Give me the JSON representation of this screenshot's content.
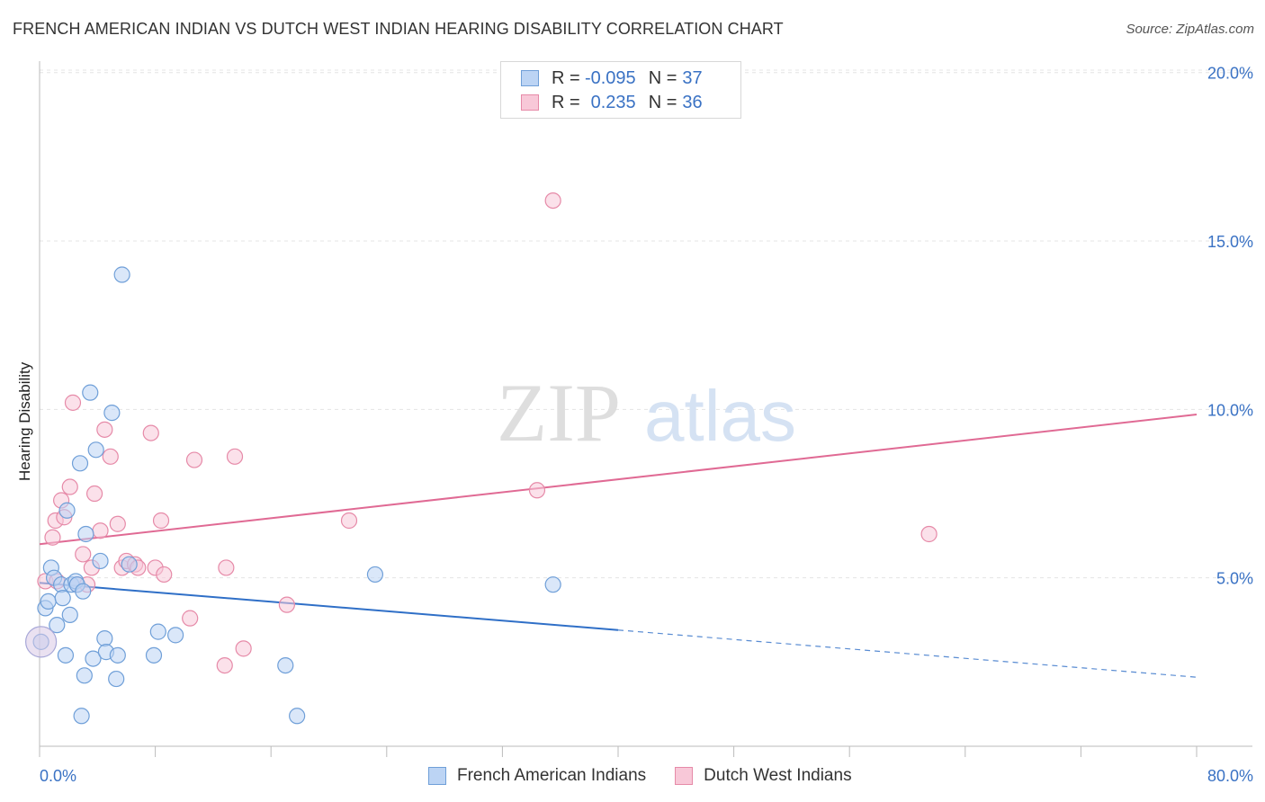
{
  "title": "FRENCH AMERICAN INDIAN VS DUTCH WEST INDIAN HEARING DISABILITY CORRELATION CHART",
  "source": "Source: ZipAtlas.com",
  "watermark": {
    "zip": "ZIP",
    "atlas": "atlas"
  },
  "legend": {
    "rows": [
      {
        "r_label": "R =",
        "r_value": "-0.095",
        "n_label": "N =",
        "n_value": "37"
      },
      {
        "r_label": "R =",
        "r_value": "0.235",
        "n_label": "N =",
        "n_value": "36"
      }
    ]
  },
  "bottom_legend": [
    "French American Indians",
    "Dutch West Indians"
  ],
  "colors": {
    "blue_fill": "#bcd4f4",
    "blue_stroke": "#6f9fd8",
    "blue_line": "#2f6fc7",
    "pink_fill": "#f8c8d8",
    "pink_stroke": "#e68aa8",
    "pink_line": "#e06a94",
    "tick_text": "#3a72c4",
    "grid": "#e4e4e4"
  },
  "chart_data": {
    "type": "scatter",
    "title": "FRENCH AMERICAN INDIAN VS DUTCH WEST INDIAN HEARING DISABILITY CORRELATION CHART",
    "xlabel": "",
    "ylabel": "Hearing Disability",
    "xlim": [
      0,
      80
    ],
    "ylim": [
      0,
      20.5
    ],
    "x_tick_labels": [
      "0.0%",
      "80.0%"
    ],
    "y_ticks": [
      5,
      10,
      15,
      20
    ],
    "y_tick_labels": [
      "5.0%",
      "10.0%",
      "15.0%",
      "20.0%"
    ],
    "grid": true,
    "series": [
      {
        "name": "French American Indians",
        "r": -0.095,
        "n": 37,
        "trend": {
          "x0": 0,
          "y0": 4.85,
          "x1": 40,
          "y1": 3.45,
          "dashed_to_x": 80,
          "dashed_to_y": 2.05
        },
        "points": [
          [
            0.1,
            3.1
          ],
          [
            0.4,
            4.1
          ],
          [
            0.6,
            4.3
          ],
          [
            0.8,
            5.3
          ],
          [
            1.0,
            5.0
          ],
          [
            1.2,
            3.6
          ],
          [
            1.5,
            4.8
          ],
          [
            1.6,
            4.4
          ],
          [
            1.8,
            2.7
          ],
          [
            1.9,
            7.0
          ],
          [
            2.1,
            3.9
          ],
          [
            2.2,
            4.8
          ],
          [
            2.5,
            4.9
          ],
          [
            2.6,
            4.8
          ],
          [
            2.8,
            8.4
          ],
          [
            2.9,
            0.9
          ],
          [
            3.0,
            4.6
          ],
          [
            3.1,
            2.1
          ],
          [
            3.2,
            6.3
          ],
          [
            3.5,
            10.5
          ],
          [
            3.7,
            2.6
          ],
          [
            3.9,
            8.8
          ],
          [
            4.2,
            5.5
          ],
          [
            4.5,
            3.2
          ],
          [
            4.6,
            2.8
          ],
          [
            5.0,
            9.9
          ],
          [
            5.3,
            2.0
          ],
          [
            5.4,
            2.7
          ],
          [
            5.7,
            14.0
          ],
          [
            6.2,
            5.4
          ],
          [
            7.9,
            2.7
          ],
          [
            8.2,
            3.4
          ],
          [
            9.4,
            3.3
          ],
          [
            17.0,
            2.4
          ],
          [
            17.8,
            0.9
          ],
          [
            23.2,
            5.1
          ],
          [
            35.5,
            4.8
          ]
        ]
      },
      {
        "name": "Dutch West Indians",
        "r": 0.235,
        "n": 36,
        "trend": {
          "x0": 0,
          "y0": 6.0,
          "x1": 80,
          "y1": 9.85
        },
        "points": [
          [
            0.4,
            4.9
          ],
          [
            0.9,
            6.2
          ],
          [
            1.1,
            6.7
          ],
          [
            1.2,
            4.9
          ],
          [
            1.5,
            7.3
          ],
          [
            1.7,
            6.8
          ],
          [
            2.1,
            7.7
          ],
          [
            2.3,
            10.2
          ],
          [
            2.6,
            4.8
          ],
          [
            3.0,
            5.7
          ],
          [
            3.3,
            4.8
          ],
          [
            3.6,
            5.3
          ],
          [
            3.8,
            7.5
          ],
          [
            4.2,
            6.4
          ],
          [
            4.5,
            9.4
          ],
          [
            4.9,
            8.6
          ],
          [
            5.4,
            6.6
          ],
          [
            5.7,
            5.3
          ],
          [
            6.0,
            5.5
          ],
          [
            6.6,
            5.4
          ],
          [
            6.8,
            5.3
          ],
          [
            7.7,
            9.3
          ],
          [
            8.0,
            5.3
          ],
          [
            8.4,
            6.7
          ],
          [
            8.6,
            5.1
          ],
          [
            10.4,
            3.8
          ],
          [
            10.7,
            8.5
          ],
          [
            12.8,
            2.4
          ],
          [
            12.9,
            5.3
          ],
          [
            13.5,
            8.6
          ],
          [
            14.1,
            2.9
          ],
          [
            17.1,
            4.2
          ],
          [
            21.4,
            6.7
          ],
          [
            34.4,
            7.6
          ],
          [
            35.5,
            16.2
          ],
          [
            61.5,
            6.3
          ]
        ]
      }
    ]
  }
}
